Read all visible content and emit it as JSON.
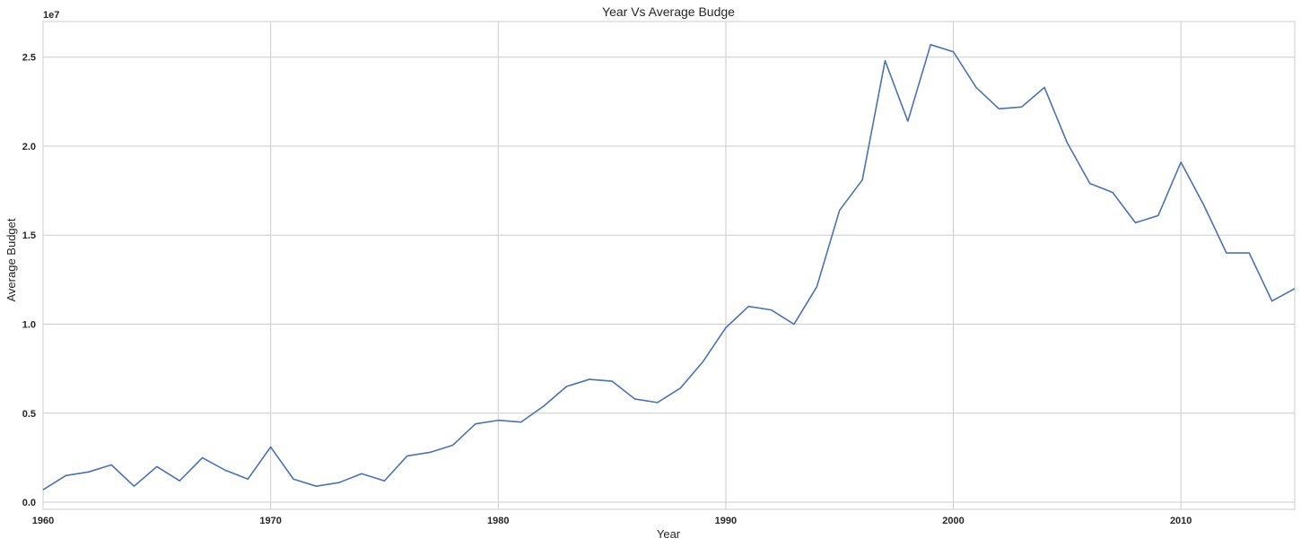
{
  "chart_data": {
    "type": "line",
    "title": "Year Vs Average Budge",
    "xlabel": "Year",
    "ylabel": "Average Budget",
    "offset_label": "1e7",
    "xlim": [
      1960,
      2015
    ],
    "ylim": [
      -0.04,
      2.7
    ],
    "x_ticks": [
      1960,
      1970,
      1980,
      1990,
      2000,
      2010
    ],
    "y_ticks": [
      0.0,
      0.5,
      1.0,
      1.5,
      2.0,
      2.5
    ],
    "y_tick_labels": [
      "0.0",
      "0.5",
      "1.0",
      "1.5",
      "2.0",
      "2.5"
    ],
    "grid": true,
    "color": "#4c72b0",
    "x": [
      1960,
      1961,
      1962,
      1963,
      1964,
      1965,
      1966,
      1967,
      1968,
      1969,
      1970,
      1971,
      1972,
      1973,
      1974,
      1975,
      1976,
      1977,
      1978,
      1979,
      1980,
      1981,
      1982,
      1983,
      1984,
      1985,
      1986,
      1987,
      1988,
      1989,
      1990,
      1991,
      1992,
      1993,
      1994,
      1995,
      1996,
      1997,
      1998,
      1999,
      2000,
      2001,
      2002,
      2003,
      2004,
      2005,
      2006,
      2007,
      2008,
      2009,
      2010,
      2011,
      2012,
      2013,
      2014,
      2015
    ],
    "y": [
      0.07,
      0.15,
      0.17,
      0.21,
      0.09,
      0.2,
      0.12,
      0.25,
      0.18,
      0.13,
      0.31,
      0.13,
      0.09,
      0.11,
      0.16,
      0.12,
      0.26,
      0.28,
      0.32,
      0.44,
      0.46,
      0.45,
      0.54,
      0.65,
      0.69,
      0.68,
      0.58,
      0.56,
      0.64,
      0.79,
      0.98,
      1.1,
      1.08,
      1.0,
      1.21,
      1.64,
      1.81,
      2.48,
      2.14,
      2.57,
      2.53,
      2.33,
      2.21,
      2.22,
      2.33,
      2.02,
      1.79,
      1.74,
      1.57,
      1.61,
      1.91,
      1.67,
      1.4,
      1.4,
      1.13,
      1.2
    ]
  }
}
